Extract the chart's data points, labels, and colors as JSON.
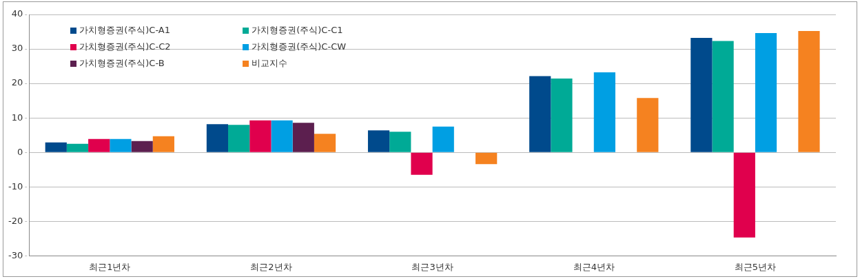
{
  "chart_data": {
    "type": "bar",
    "categories": [
      "최근1년차",
      "최근2년차",
      "최근3년차",
      "최근4년차",
      "최근5년차"
    ],
    "series": [
      {
        "name": "가치형증권(주식)C-A1",
        "color": "#004a8c",
        "values": [
          2.9,
          8.2,
          6.4,
          22.1,
          33.2
        ]
      },
      {
        "name": "가치형증권(주식)C-C1",
        "color": "#00aa96",
        "values": [
          2.5,
          8.0,
          6.0,
          21.4,
          32.3
        ]
      },
      {
        "name": "가치형증권(주식)C-C2",
        "color": "#e0004d",
        "values": [
          3.9,
          9.3,
          -6.5,
          null,
          -24.7
        ]
      },
      {
        "name": "가치형증권(주식)C-CW",
        "color": "#009fe3",
        "values": [
          3.9,
          9.3,
          7.5,
          23.2,
          34.6
        ]
      },
      {
        "name": "가치형증권(주식)C-B",
        "color": "#5c1f4f",
        "values": [
          3.3,
          8.6,
          null,
          null,
          null
        ]
      },
      {
        "name": "비교지수",
        "color": "#f58220",
        "values": [
          4.7,
          5.4,
          -3.4,
          15.8,
          35.2
        ]
      }
    ],
    "ylim": [
      -30,
      40
    ],
    "yticks": [
      -30,
      -20,
      -10,
      0,
      10,
      20,
      30,
      40
    ],
    "grid": "y",
    "legend": "top left"
  }
}
